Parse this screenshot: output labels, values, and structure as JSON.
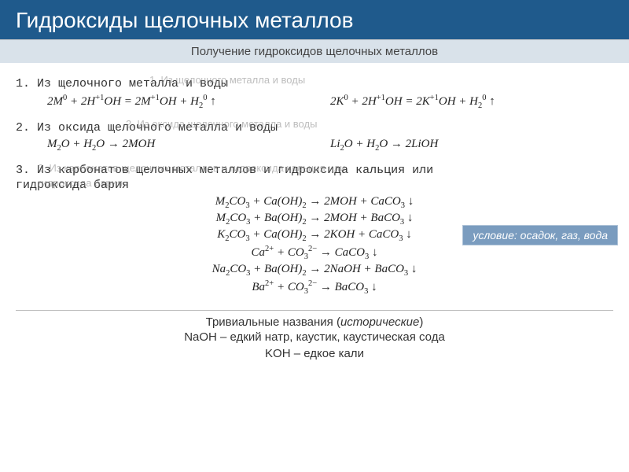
{
  "colors": {
    "header_bg": "#1f5a8c",
    "header_fg": "#ffffff",
    "subheader_bg": "#d9e2ea",
    "subheader_fg": "#444444",
    "body_bg": "#ffffff",
    "text": "#333333",
    "eq_text": "#222222",
    "badge_bg": "#7a9cbf",
    "badge_fg": "#ffffff",
    "divider": "#bbbbbb",
    "smudge": "#888888"
  },
  "typography": {
    "header_fontsize": 28,
    "subheader_fontsize": 15,
    "section_fontsize": 15,
    "eq_fontsize": 15,
    "trivial_fontsize": 15,
    "section_font": "Courier New, monospace",
    "eq_font": "Times New Roman, serif"
  },
  "header": {
    "title": "Гидроксиды щелочных металлов",
    "subtitle": "Получение гидроксидов щелочных металлов"
  },
  "section1": {
    "title": "1. Из щелочного металла и воды",
    "smudge": "1. Из щелочного металла и воды",
    "eq_left_html": "2M<sup>0</sup> + 2H<sup>+1</sup>OH = 2M<sup>+1</sup>OH + H<sub>2</sub><sup>0</sup> ↑",
    "eq_right_html": "2K<sup>0</sup> + 2H<sup>+1</sup>OH = 2K<sup>+1</sup>OH + H<sub>2</sub><sup>0</sup> ↑"
  },
  "section2": {
    "title": "2. Из оксида щелочного металла и воды",
    "smudge": "2. Из оксида щелочного металла и воды",
    "eq_left_html": "M<sub>2</sub>O + H<sub>2</sub>O → 2MOH",
    "eq_right_html": "Li<sub>2</sub>O + H<sub>2</sub>O → 2LiOH"
  },
  "section3": {
    "title": "3. Из карбонатов щелочных металлов и гидроксида кальция или",
    "title2": "гидроксида бария",
    "smudge1": "3. Из карбонатов щелочных металлов и гидроксида кальция или",
    "smudge2": "гидроксида бария",
    "condition": "условие: осадок, газ, вода",
    "equations": [
      "M<sub>2</sub>CO<sub>3</sub> + Ca(OH)<sub>2</sub> → 2MOH + CaCO<sub>3</sub> ↓",
      "M<sub>2</sub>CO<sub>3</sub> + Ba(OH)<sub>2</sub> → 2MOH + BaCO<sub>3</sub> ↓",
      "K<sub>2</sub>CO<sub>3</sub> + Ca(OH)<sub>2</sub> → 2KOH + CaCO<sub>3</sub> ↓",
      "Ca<sup>2+</sup> + CO<sub>3</sub><sup>2−</sup> → CaCO<sub>3</sub> ↓",
      "Na<sub>2</sub>CO<sub>3</sub> + Ba(OH)<sub>2</sub> → 2NaOH + BaCO<sub>3</sub> ↓",
      "Ba<sup>2+</sup> + CO<sub>3</sub><sup>2−</sup> → BaCO<sub>3</sub> ↓"
    ]
  },
  "trivial": {
    "heading_html": "Тривиальные названия (<i>исторические</i>)",
    "line1": "NaOH – едкий натр, каустик, каустическая сода",
    "line2": "KOH – едкое кали"
  }
}
